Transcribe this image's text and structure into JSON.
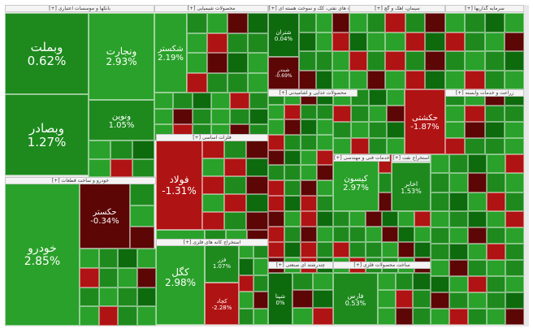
{
  "colors": {
    "up_strong": "#2aa12a",
    "up_mid": "#1e8a1e",
    "up_dark": "#0d6b0d",
    "down_strong": "#b01313",
    "down_dark": "#5c0606",
    "neutral": "#3a3a3a"
  },
  "chart_data": {
    "type": "heatmap",
    "sectors": [
      "بانکها و موسسات اعتباری",
      "محصولات شیمیایی",
      "فراورده های نفتی، کک و سوخت هسته ای",
      "سیمان، آهک و گچ",
      "سرمایه گذاریها",
      "فلزات اساسی",
      "خودرو و ساخت قطعات",
      "استخراج کانه های فلزی",
      "محصولات غذایی و آشامیدنی",
      "خدمات فنی و مهندسی",
      "چندرشته ای صنعتی",
      "ساخت محصولات فلزی",
      "استخراج نفت",
      "زراعت و خدمات وابسته"
    ],
    "symbols": [
      {
        "name": "وبملت",
        "change": 0.62
      },
      {
        "name": "ونجارت",
        "change": 2.93
      },
      {
        "name": "وبصادر",
        "change": 1.27
      },
      {
        "name": "ونوین",
        "change": 1.05
      },
      {
        "name": "شکستر",
        "change": 2.19
      },
      {
        "name": "فولاد",
        "change": -1.31
      },
      {
        "name": "حکستر",
        "change": -0.34
      },
      {
        "name": "خودرو",
        "change": 2.85
      },
      {
        "name": "کگل",
        "change": 2.98
      },
      {
        "name": "فزر",
        "change": 1.07
      },
      {
        "name": "شتران",
        "change": 0.04
      },
      {
        "name": "شبندر",
        "change": -0.69
      },
      {
        "name": "حکشتی",
        "change": -1.87
      },
      {
        "name": "کیسون",
        "change": 2.97
      },
      {
        "name": "اخابر",
        "change": 1.53
      },
      {
        "name": "فارس",
        "change": 0.53
      },
      {
        "name": "کچاد",
        "change": -2.28
      },
      {
        "name": "شپنا",
        "change": 0.0
      }
    ]
  },
  "header_text": {
    "banks": "[+] بانکها و موسسات اعتباری",
    "chem": "[+] محصولات شیمیایی",
    "oil": "[+] فراورده های نفتی، کک و سوخت هسته ای",
    "cement": "[+] سیمان، آهک و گچ",
    "invest": "[+] سرمایه گذاریها",
    "metals": "[+] فلزات اساسی",
    "auto": "[+] خودرو و ساخت قطعات",
    "mining": "[+] استخراج کانه های فلزی",
    "food": "[+] محصولات غذایی و آشامیدنی",
    "services": "[+] خدمات فنی و مهندسی",
    "multi": "[+] چندرشته ای صنعتی",
    "metalprod": "[+] ساخت محصولات فلزی",
    "oilext": "[+] استخراج نفت",
    "agri": "[+] زراعت و خدمات وابسته"
  },
  "labels": {
    "vbmellat": {
      "name": "وبملت",
      "pct": "0.62%"
    },
    "vtejarat": {
      "name": "ونجارت",
      "pct": "2.93%"
    },
    "vbsaderat": {
      "name": "وبصادر",
      "pct": "1.27%"
    },
    "vnovin": {
      "name": "ونوین",
      "pct": "1.05%"
    },
    "shekastar": {
      "name": "شکستر",
      "pct": "2.19%"
    },
    "foolad": {
      "name": "فولاد",
      "pct": "-1.31%"
    },
    "hkestar": {
      "name": "حکستر",
      "pct": "-0.34%"
    },
    "khodro": {
      "name": "خودرو",
      "pct": "2.85%"
    },
    "kegol": {
      "name": "کگل",
      "pct": "2.98%"
    },
    "fazar": {
      "name": "فزر",
      "pct": "1.07%"
    },
    "shetran": {
      "name": "شتران",
      "pct": "0.04%"
    },
    "shebandar": {
      "name": "شبندر",
      "pct": "-0.69%"
    },
    "hkeshti": {
      "name": "حکشتی",
      "pct": "-1.87%"
    },
    "kison": {
      "name": "کیسون",
      "pct": "2.97%"
    },
    "akhaber": {
      "name": "اخابر",
      "pct": "1.53%"
    },
    "fars": {
      "name": "فارس",
      "pct": "0.53%"
    },
    "kechad": {
      "name": "کچاد",
      "pct": "-2.28%"
    },
    "shepna": {
      "name": "شپنا",
      "pct": "0%"
    }
  }
}
